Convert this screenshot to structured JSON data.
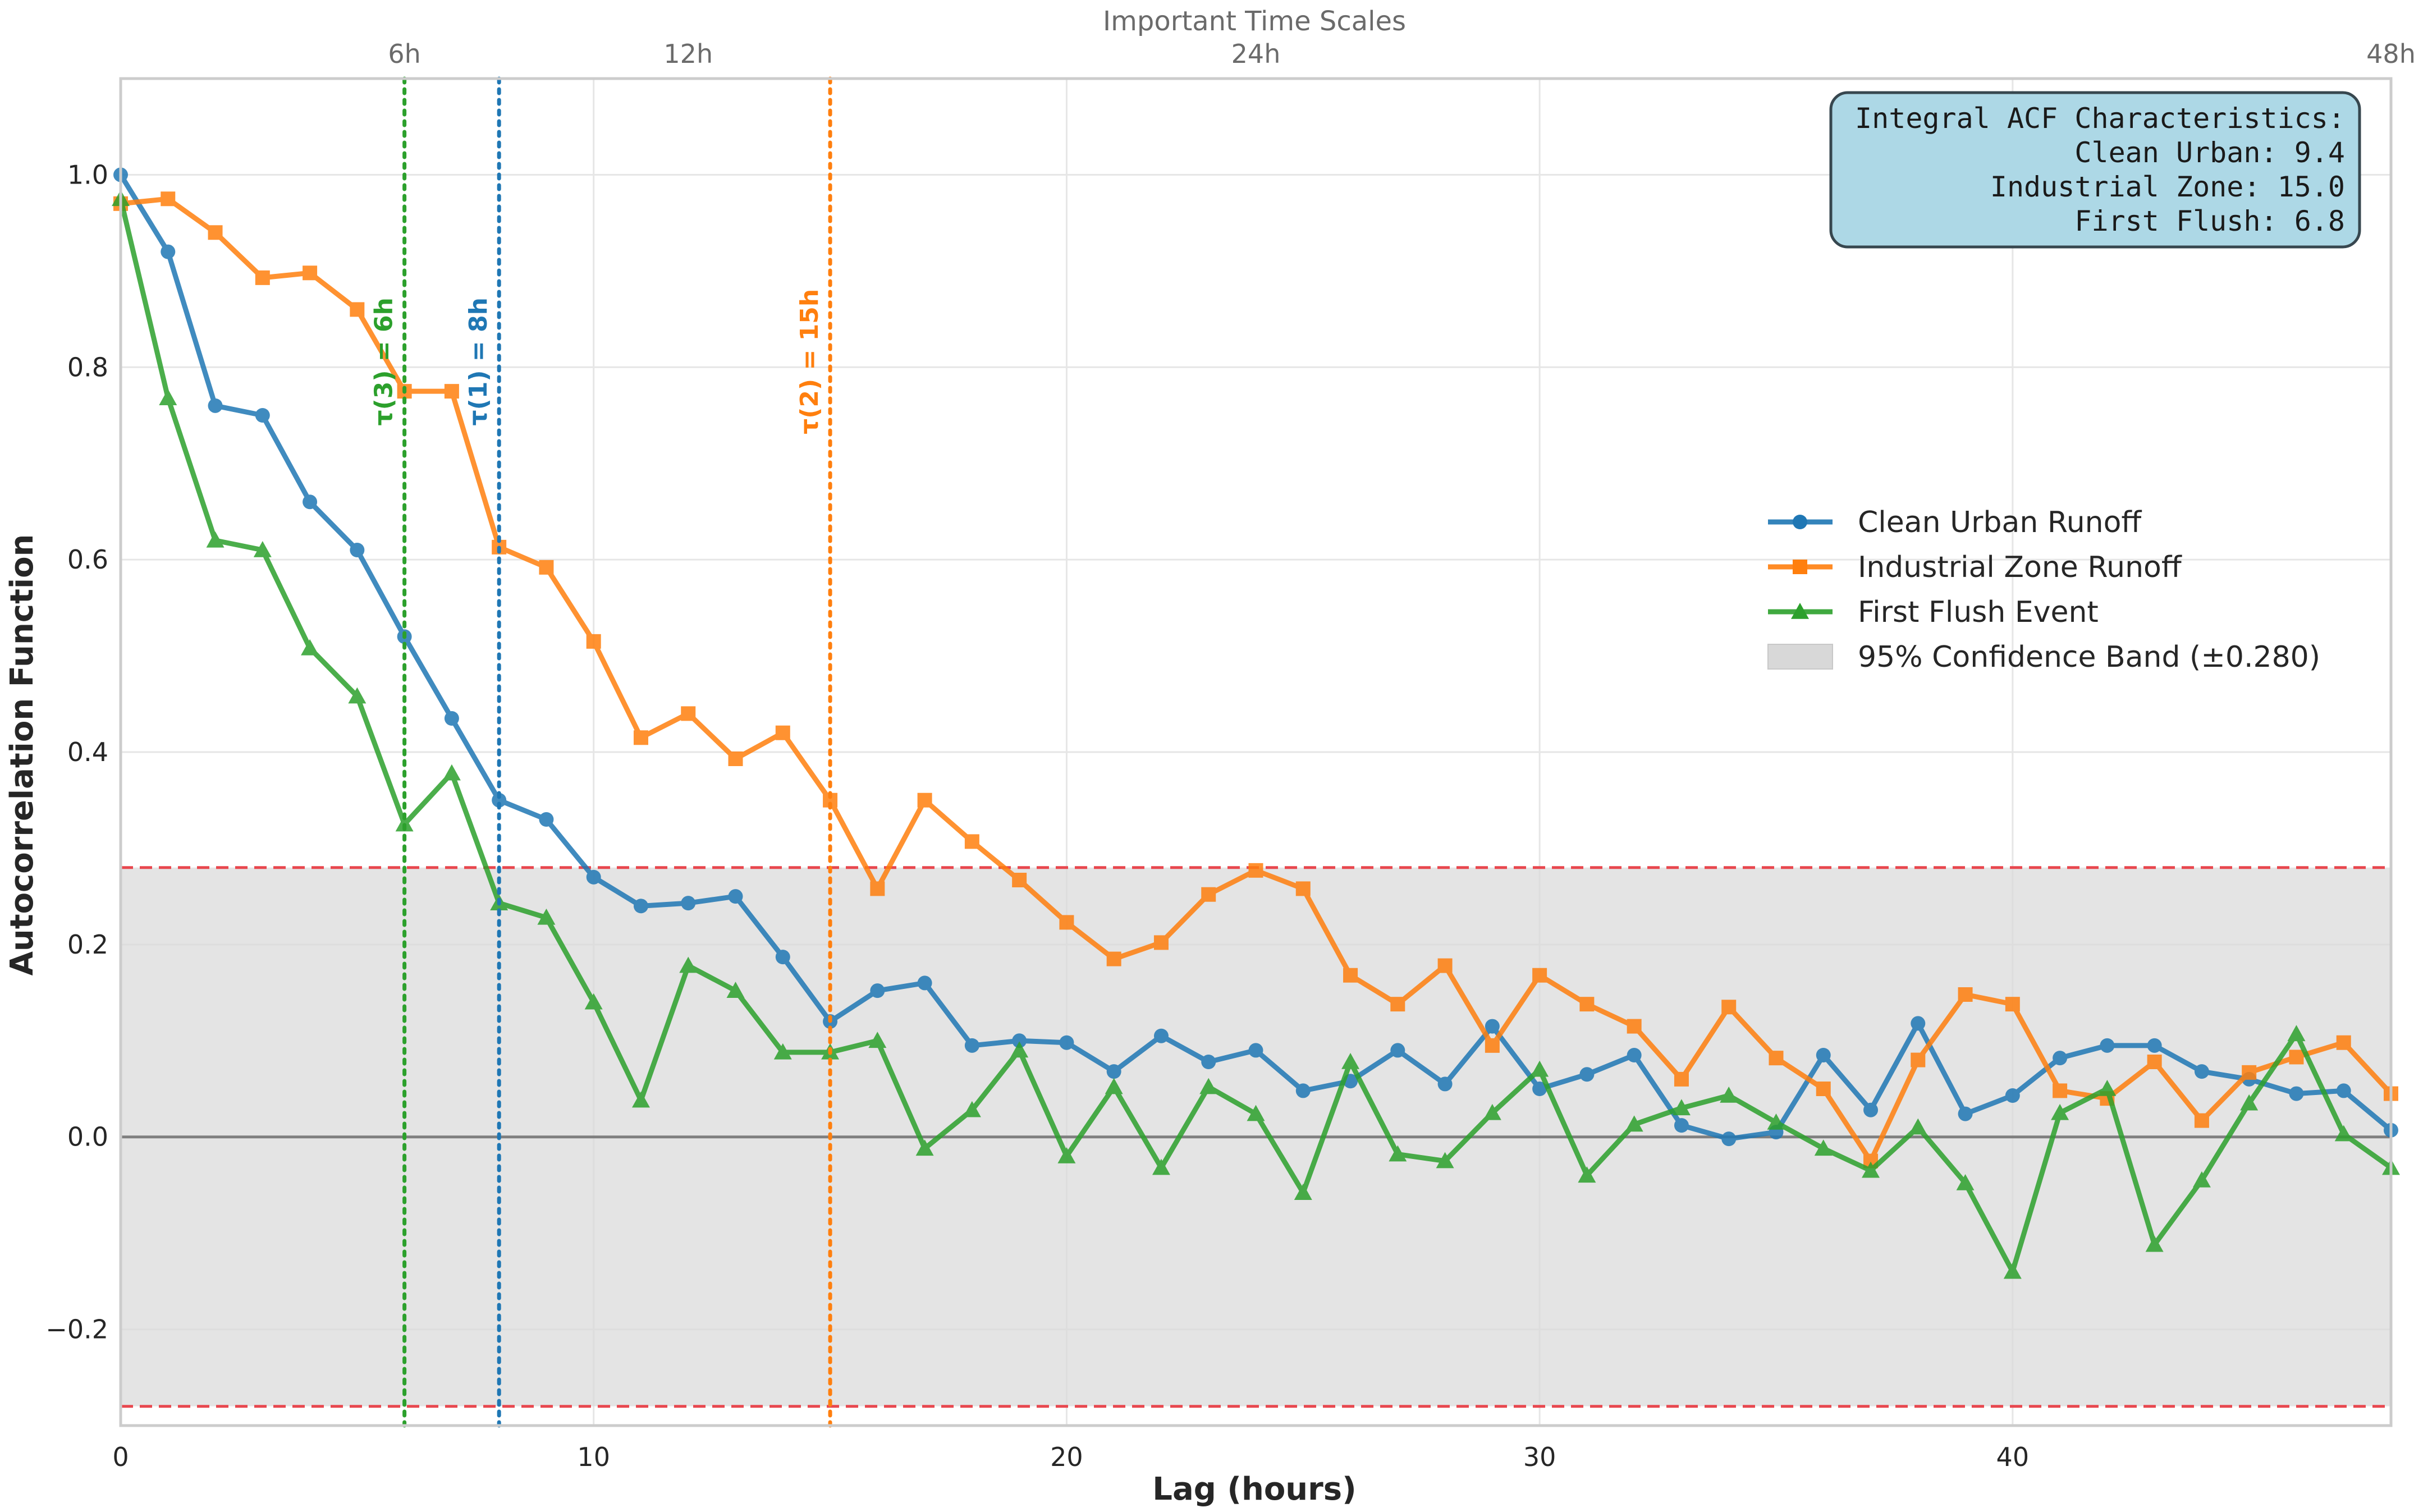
{
  "chart_data": {
    "type": "line",
    "title": "",
    "xlabel": "Lag (hours)",
    "ylabel": "Autocorrelation Function",
    "xlim": [
      0,
      48
    ],
    "ylim": [
      -0.3,
      1.1
    ],
    "x_ticks": [
      0,
      10,
      20,
      30,
      40
    ],
    "x_tick_labels": [
      "0",
      "10",
      "20",
      "30",
      "40"
    ],
    "y_ticks": [
      -0.2,
      0.0,
      0.2,
      0.4,
      0.6,
      0.8,
      1.0
    ],
    "y_tick_labels": [
      "−0.2",
      "0.0",
      "0.2",
      "0.4",
      "0.6",
      "0.8",
      "1.0"
    ],
    "grid": true,
    "x": [
      0,
      1,
      2,
      3,
      4,
      5,
      6,
      7,
      8,
      9,
      10,
      11,
      12,
      13,
      14,
      15,
      16,
      17,
      18,
      19,
      20,
      21,
      22,
      23,
      24,
      25,
      26,
      27,
      28,
      29,
      30,
      31,
      32,
      33,
      34,
      35,
      36,
      37,
      38,
      39,
      40,
      41,
      42,
      43,
      44,
      45,
      46,
      47,
      48
    ],
    "series": [
      {
        "name": "Clean Urban Runoff",
        "color": "#1f77b4",
        "marker": "circle",
        "values": [
          1.0,
          0.92,
          0.76,
          0.75,
          0.66,
          0.61,
          0.52,
          0.435,
          0.35,
          0.33,
          0.27,
          0.24,
          0.243,
          0.25,
          0.187,
          0.12,
          0.152,
          0.16,
          0.095,
          0.1,
          0.098,
          0.068,
          0.105,
          0.078,
          0.09,
          0.048,
          0.058,
          0.09,
          0.055,
          0.115,
          0.05,
          0.065,
          0.085,
          0.012,
          -0.002,
          0.005,
          0.085,
          0.028,
          0.118,
          0.024,
          0.043,
          0.082,
          0.095,
          0.095,
          0.068,
          0.06,
          0.045,
          0.048,
          0.007
        ]
      },
      {
        "name": "Industrial Zone Runoff",
        "color": "#ff7f0e",
        "marker": "square",
        "values": [
          0.97,
          0.975,
          0.94,
          0.893,
          0.898,
          0.86,
          0.775,
          0.775,
          0.613,
          0.592,
          0.515,
          0.415,
          0.44,
          0.393,
          0.42,
          0.35,
          0.258,
          0.35,
          0.307,
          0.267,
          0.223,
          0.185,
          0.202,
          0.252,
          0.277,
          0.258,
          0.168,
          0.138,
          0.178,
          0.095,
          0.168,
          0.138,
          0.115,
          0.06,
          0.135,
          0.082,
          0.05,
          -0.025,
          0.08,
          0.148,
          0.138,
          0.048,
          0.04,
          0.078,
          0.017,
          0.067,
          0.083,
          0.098,
          0.045
        ]
      },
      {
        "name": "First Flush Event",
        "color": "#2ca02c",
        "marker": "triangle",
        "values": [
          0.975,
          0.768,
          0.62,
          0.61,
          0.508,
          0.458,
          0.325,
          0.378,
          0.243,
          0.228,
          0.14,
          0.038,
          0.178,
          0.152,
          0.088,
          0.088,
          0.1,
          -0.012,
          0.028,
          0.09,
          -0.02,
          0.052,
          -0.032,
          0.052,
          0.024,
          -0.058,
          0.078,
          -0.018,
          -0.025,
          0.025,
          0.07,
          -0.04,
          0.013,
          0.03,
          0.043,
          0.015,
          -0.012,
          -0.035,
          0.01,
          -0.048,
          -0.14,
          0.025,
          0.05,
          -0.112,
          -0.045,
          0.035,
          0.107,
          0.003,
          -0.032
        ]
      }
    ],
    "confidence_band": {
      "label": "95% Confidence Band (±0.280)",
      "upper": 0.28,
      "lower": -0.28,
      "fill_color": "#d8d8d8",
      "line_color": "#e8474e"
    },
    "zero_line_color": "#7f7f7f",
    "vlines": [
      {
        "x": 6,
        "label": "τ(3) = 6h",
        "color": "#2ca02c",
        "label_y": 0.8
      },
      {
        "x": 8,
        "label": "τ(1) = 8h",
        "color": "#1f77b4",
        "label_y": 0.8
      },
      {
        "x": 15,
        "label": "τ(2) = 15h",
        "color": "#ff7f0e",
        "label_y": 0.8
      }
    ],
    "top_axis": {
      "label": "Important Time Scales",
      "ticks": [
        6,
        12,
        24,
        48
      ],
      "tick_labels": [
        "6h",
        "12h",
        "24h",
        "48h"
      ]
    },
    "legend_position": "center-right",
    "info_box": {
      "lines": [
        "Integral ACF Characteristics:",
        "Clean Urban: 9.4",
        "Industrial Zone: 15.0",
        "First Flush: 6.8"
      ],
      "fill_color": "#add8e6",
      "border_color": "#37474f"
    }
  }
}
